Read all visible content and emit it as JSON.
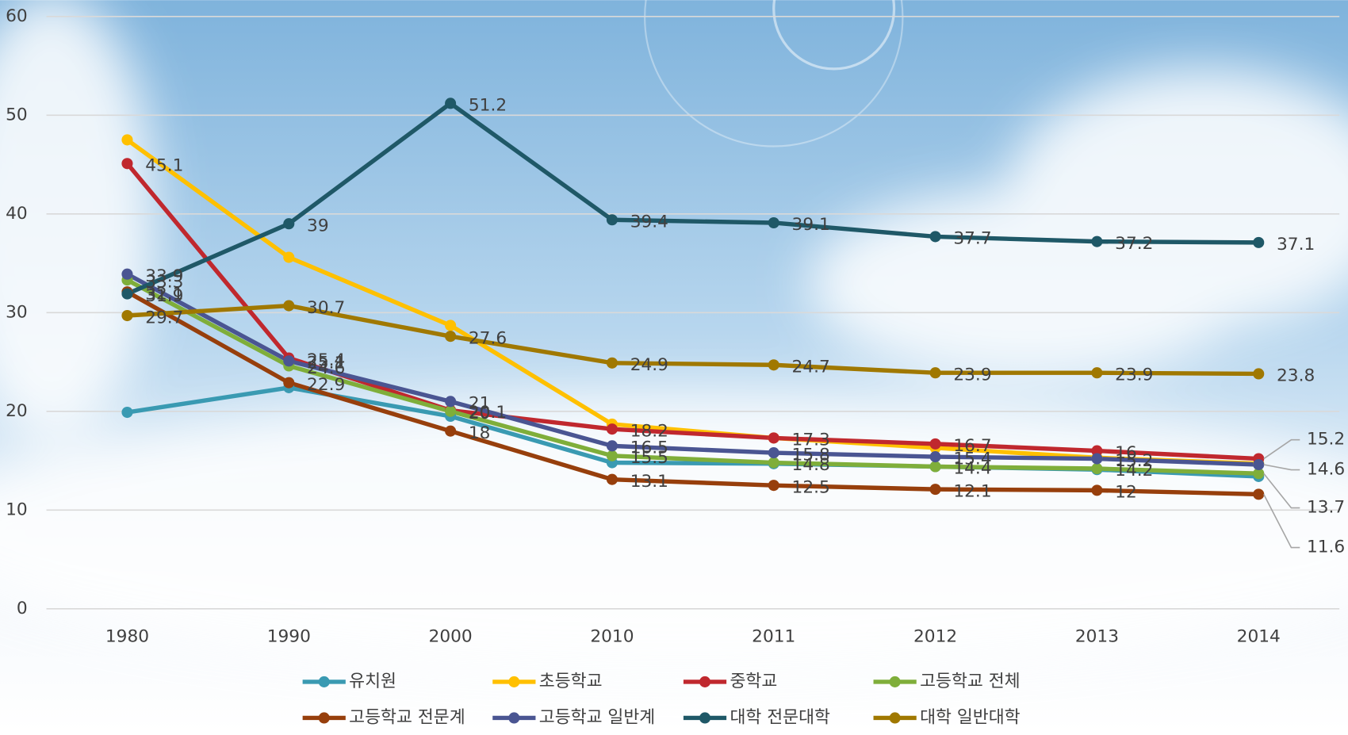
{
  "chart_data": {
    "type": "line",
    "categories": [
      "1980",
      "1990",
      "2000",
      "2010",
      "2011",
      "2012",
      "2013",
      "2014"
    ],
    "ylim": [
      0,
      60
    ],
    "yticks": [
      0,
      10,
      20,
      30,
      40,
      50,
      60
    ],
    "grid": true,
    "legend": "bottom",
    "series": [
      {
        "name": "유치원",
        "color": "#3a9ab2",
        "values": [
          19.9,
          22.4,
          19.5,
          14.8,
          14.7,
          14.4,
          14.1,
          13.4
        ]
      },
      {
        "name": "초등학교",
        "color": "#ffc000",
        "values": [
          47.5,
          35.6,
          28.7,
          18.7,
          17.3,
          16.3,
          15.3,
          14.7
        ]
      },
      {
        "name": "중학교",
        "color": "#c0282e",
        "values": [
          45.1,
          25.4,
          20.1,
          18.2,
          17.3,
          16.7,
          16,
          15.2
        ],
        "labels": true
      },
      {
        "name": "고등학교 전체",
        "color": "#7fae3a",
        "values": [
          33.3,
          24.6,
          20,
          15.5,
          14.8,
          14.4,
          14.2,
          13.7
        ],
        "labels": true
      },
      {
        "name": "고등학교 전문계",
        "color": "#973f0c",
        "values": [
          32.1,
          22.9,
          18,
          13.1,
          12.5,
          12.1,
          12,
          11.6
        ],
        "labels": true
      },
      {
        "name": "고등학교 일반계",
        "color": "#4a5592",
        "values": [
          33.9,
          25.1,
          21,
          16.5,
          15.8,
          15.4,
          15.2,
          14.6
        ],
        "labels": true
      },
      {
        "name": "대학 전문대학",
        "color": "#1f5867",
        "values": [
          31.9,
          39,
          51.2,
          39.4,
          39.1,
          37.7,
          37.2,
          37.1
        ],
        "labels": true
      },
      {
        "name": "대학 일반대학",
        "color": "#a07800",
        "values": [
          29.7,
          30.7,
          27.6,
          24.9,
          24.7,
          23.9,
          23.9,
          23.8
        ],
        "labels": true
      }
    ]
  }
}
